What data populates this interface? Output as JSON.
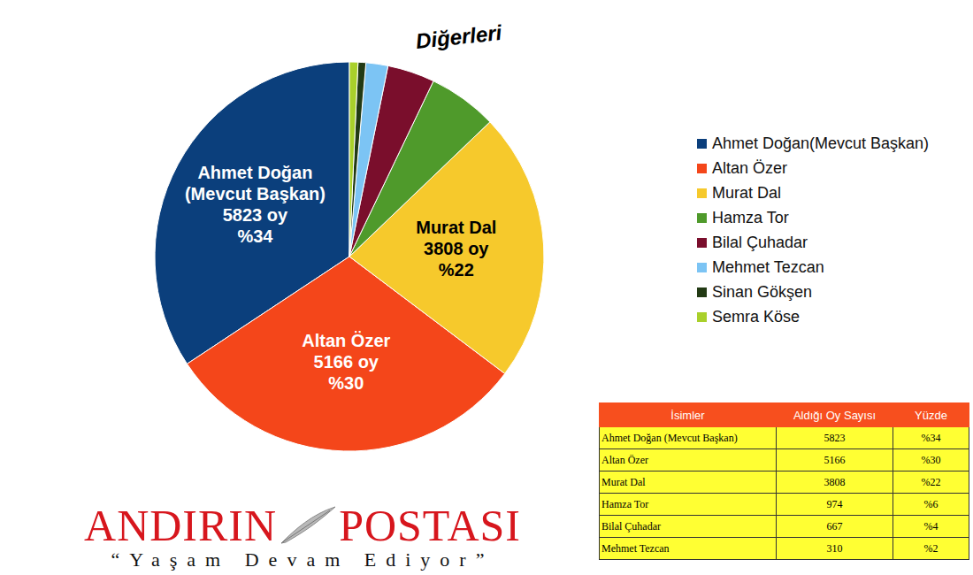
{
  "chart_data": {
    "type": "pie",
    "categories": [
      "Ahmet Doğan(Mevcut Başkan)",
      "Altan Özer",
      "Murat Dal",
      "Hamza Tor",
      "Bilal Çuhadar",
      "Mehmet Tezcan",
      "Sinan Gökşen",
      "Semra Köse"
    ],
    "values": [
      5823,
      5166,
      3808,
      974,
      667,
      310,
      110,
      120
    ],
    "colors": [
      "#0b3f7c",
      "#f4461a",
      "#f6c92c",
      "#4f9a2b",
      "#7a0e2c",
      "#7cc4f4",
      "#223a14",
      "#a9d02b"
    ],
    "slice_labels": [
      [
        "Ahmet Doğan",
        "(Mevcut Başkan)"
      ],
      [
        "Altan Özer"
      ],
      [
        "Murat Dal"
      ],
      null,
      null,
      null,
      null,
      null
    ],
    "value_labels": [
      "5823 oy",
      "5166 oy",
      "3808 oy",
      null,
      null,
      null,
      null,
      null
    ],
    "percent_labels": [
      "%34",
      "%30",
      "%22",
      null,
      null,
      null,
      null,
      null
    ],
    "annotations": [
      "Diğerleri"
    ],
    "legend": "right",
    "data_labels": true
  },
  "table": {
    "header": [
      "İsimler",
      "Aldığı Oy Sayısı",
      "Yüzde"
    ],
    "rows": [
      [
        "Ahmet Doğan (Mevcut Başkan)",
        5823,
        "%34"
      ],
      [
        "Altan Özer",
        5166,
        "%30"
      ],
      [
        "Murat Dal",
        3808,
        "%22"
      ],
      [
        "Hamza Tor",
        974,
        "%6"
      ],
      [
        "Bilal Çuhadar",
        667,
        "%4"
      ],
      [
        "Mehmet Tezcan",
        310,
        "%2"
      ]
    ]
  },
  "logo": {
    "words": [
      "ANDIRIN",
      "POSTASI"
    ],
    "slogan": "“Yaşam Devam Ediyor”"
  }
}
